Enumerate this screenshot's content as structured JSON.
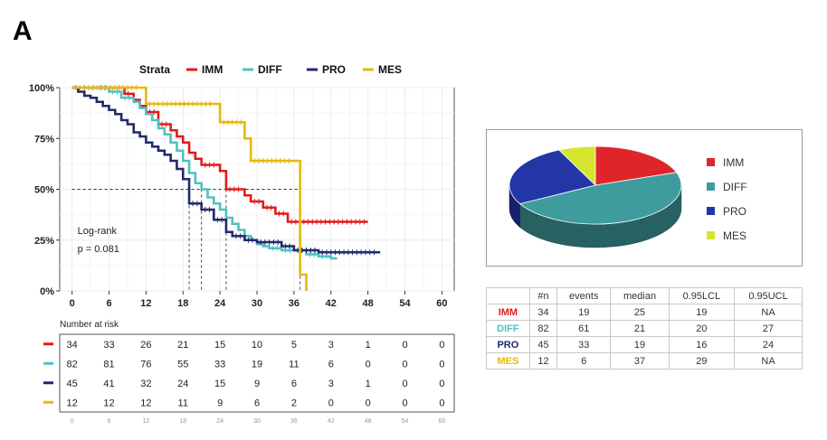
{
  "panel_label": "A",
  "chart_data": [
    {
      "type": "line",
      "subtype": "kaplan-meier",
      "title": "",
      "legend": {
        "title": "Strata",
        "placement": "top"
      },
      "xlabel": "",
      "ylabel": "",
      "xlim": [
        -2,
        62
      ],
      "ylim": [
        0,
        1
      ],
      "xticks": [
        "0",
        "6",
        "12",
        "18",
        "24",
        "30",
        "36",
        "42",
        "48",
        "54",
        "60"
      ],
      "yticks": [
        "0%",
        "25%",
        "50%",
        "75%",
        "100%"
      ],
      "grid": true,
      "annotation": [
        "Log-rank",
        "p = 0.081"
      ],
      "median_line": 0.5,
      "series": [
        {
          "name": "IMM",
          "color": "#e31a1c",
          "median": 25,
          "x": [
            0,
            7,
            8.5,
            10,
            11,
            12,
            14,
            16,
            17,
            18,
            19,
            20,
            21,
            24,
            25,
            28,
            29,
            31,
            33,
            35,
            37,
            48
          ],
          "y": [
            1,
            1,
            0.97,
            0.94,
            0.91,
            0.88,
            0.82,
            0.79,
            0.76,
            0.73,
            0.68,
            0.65,
            0.62,
            0.59,
            0.5,
            0.47,
            0.44,
            0.41,
            0.38,
            0.34,
            0.34,
            0.34
          ]
        },
        {
          "name": "DIFF",
          "color": "#4fc1c1",
          "median": 21,
          "x": [
            0,
            4,
            6,
            8,
            10,
            11,
            12,
            13,
            14,
            15,
            16,
            17,
            18,
            19,
            20,
            21,
            22,
            23,
            24,
            25,
            26,
            27,
            28,
            29,
            30,
            31,
            32,
            34,
            36,
            38,
            40,
            42,
            43
          ],
          "y": [
            1,
            1,
            0.98,
            0.95,
            0.93,
            0.9,
            0.87,
            0.84,
            0.8,
            0.77,
            0.73,
            0.69,
            0.64,
            0.58,
            0.53,
            0.5,
            0.46,
            0.43,
            0.4,
            0.36,
            0.33,
            0.3,
            0.27,
            0.25,
            0.23,
            0.22,
            0.21,
            0.2,
            0.2,
            0.18,
            0.17,
            0.16,
            0.16
          ]
        },
        {
          "name": "PRO",
          "color": "#1f2a6e",
          "median": 19,
          "x": [
            0,
            1,
            2,
            3,
            4,
            5,
            6,
            7,
            8,
            9,
            10,
            11,
            12,
            13,
            14,
            15,
            16,
            17,
            18,
            19,
            21,
            23,
            25,
            26,
            28,
            30,
            34,
            36,
            40,
            50
          ],
          "y": [
            1,
            0.98,
            0.96,
            0.95,
            0.93,
            0.91,
            0.89,
            0.87,
            0.84,
            0.82,
            0.78,
            0.76,
            0.73,
            0.71,
            0.69,
            0.67,
            0.64,
            0.6,
            0.55,
            0.43,
            0.4,
            0.35,
            0.29,
            0.27,
            0.25,
            0.24,
            0.22,
            0.2,
            0.19,
            0.19
          ]
        },
        {
          "name": "MES",
          "color": "#e5b80b",
          "median": 37,
          "x": [
            0,
            11,
            12,
            23,
            24,
            28,
            29,
            36,
            37,
            38
          ],
          "y": [
            1,
            1,
            0.92,
            0.92,
            0.83,
            0.75,
            0.64,
            0.64,
            0.08,
            0
          ]
        }
      ]
    },
    {
      "type": "table",
      "title": "Number at risk",
      "xticks": [
        "0",
        "6",
        "12",
        "18",
        "24",
        "30",
        "36",
        "42",
        "48",
        "54",
        "60"
      ],
      "rows": [
        {
          "stratum": "IMM",
          "color": "#e31a1c",
          "values": [
            34,
            33,
            26,
            21,
            15,
            10,
            5,
            3,
            1,
            0,
            0
          ]
        },
        {
          "stratum": "DIFF",
          "color": "#4fc1c1",
          "values": [
            82,
            81,
            76,
            55,
            33,
            19,
            11,
            6,
            0,
            0,
            0
          ]
        },
        {
          "stratum": "PRO",
          "color": "#1f2a6e",
          "values": [
            45,
            41,
            32,
            24,
            15,
            9,
            6,
            3,
            1,
            0,
            0
          ]
        },
        {
          "stratum": "MES",
          "color": "#e5b80b",
          "values": [
            12,
            12,
            12,
            11,
            9,
            6,
            2,
            0,
            0,
            0,
            0
          ]
        }
      ]
    },
    {
      "type": "pie",
      "legend": {
        "placement": "right"
      },
      "slices": [
        {
          "name": "IMM",
          "value": 34,
          "color": "#e0252a"
        },
        {
          "name": "DIFF",
          "value": 82,
          "color": "#3f9c9e"
        },
        {
          "name": "PRO",
          "value": 45,
          "color": "#2336a8"
        },
        {
          "name": "MES",
          "value": 12,
          "color": "#d5e52e"
        }
      ]
    },
    {
      "type": "table",
      "columns": [
        "",
        "#n",
        "events",
        "median",
        "0.95LCL",
        "0.95UCL"
      ],
      "rows": [
        {
          "stratum": "IMM",
          "color": "#e31a1c",
          "cells": [
            "34",
            "19",
            "25",
            "19",
            "NA"
          ]
        },
        {
          "stratum": "DIFF",
          "color": "#4fc1c1",
          "cells": [
            "82",
            "61",
            "21",
            "20",
            "27"
          ]
        },
        {
          "stratum": "PRO",
          "color": "#1f2a6e",
          "cells": [
            "45",
            "33",
            "19",
            "16",
            "24"
          ]
        },
        {
          "stratum": "MES",
          "color": "#e5b80b",
          "cells": [
            "12",
            "6",
            "37",
            "29",
            "NA"
          ]
        }
      ]
    }
  ]
}
